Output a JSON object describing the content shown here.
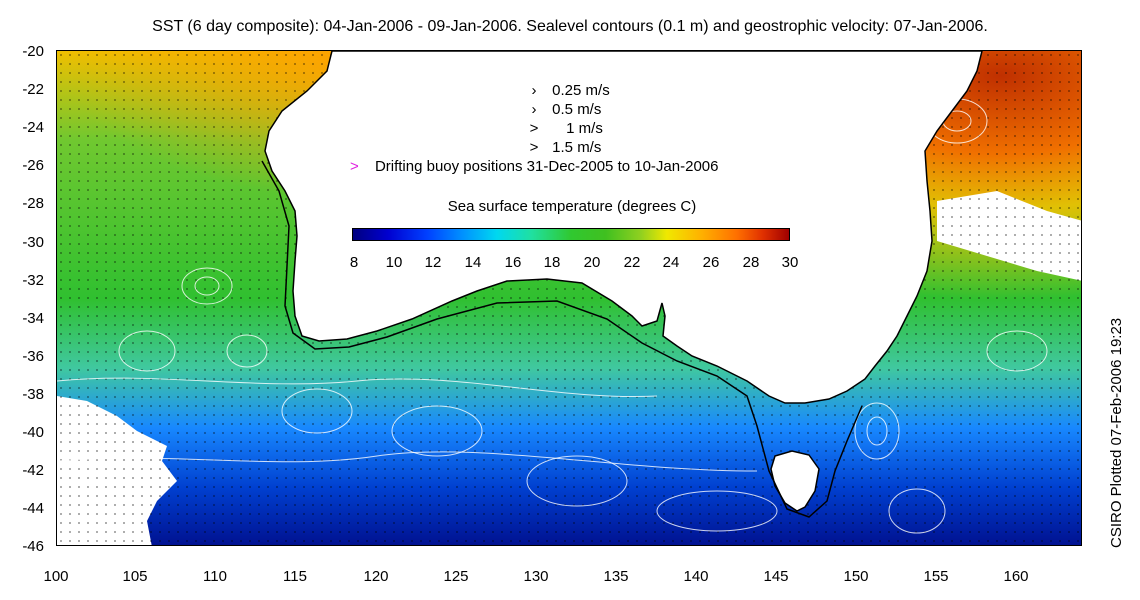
{
  "title": "SST (6 day composite): 04-Jan-2006 - 09-Jan-2006. Sealevel contours (0.1 m) and geostrophic velocity: 07-Jan-2006.",
  "credit": "CSIRO Plotted 07-Feb-2006 19:23",
  "y_axis": {
    "ticks": [
      "-20",
      "-22",
      "-24",
      "-26",
      "-28",
      "-30",
      "-32",
      "-34",
      "-36",
      "-38",
      "-40",
      "-42",
      "-44",
      "-46"
    ]
  },
  "x_axis": {
    "ticks": [
      "100",
      "105",
      "110",
      "115",
      "120",
      "125",
      "130",
      "135",
      "140",
      "145",
      "150",
      "155",
      "160"
    ]
  },
  "velocity_legend": [
    {
      "label": "0.25 m/s",
      "glyph": "›"
    },
    {
      "label": "0.5 m/s",
      "glyph": "›"
    },
    {
      "label": "1 m/s",
      "glyph": ">"
    },
    {
      "label": "1.5 m/s",
      "glyph": ">"
    }
  ],
  "buoy_legend": {
    "label": "Drifting buoy positions 31-Dec-2005 to 10-Jan-2006",
    "glyph": ">",
    "color": "#e020e0"
  },
  "colorbar": {
    "title": "Sea surface temperature (degrees C)",
    "ticks": [
      "8",
      "10",
      "12",
      "14",
      "16",
      "18",
      "20",
      "22",
      "24",
      "26",
      "28",
      "30"
    ],
    "colors": [
      "#00007f",
      "#0000d0",
      "#0040ff",
      "#0090ff",
      "#00d8f0",
      "#20e0a0",
      "#30c830",
      "#40c020",
      "#90d020",
      "#f0e800",
      "#ffb000",
      "#ff7000",
      "#e03000",
      "#a00000"
    ]
  },
  "colors": {
    "land": "#ffffff",
    "coast": "#000000",
    "contour": "#ffffff",
    "vector": "#000000"
  }
}
